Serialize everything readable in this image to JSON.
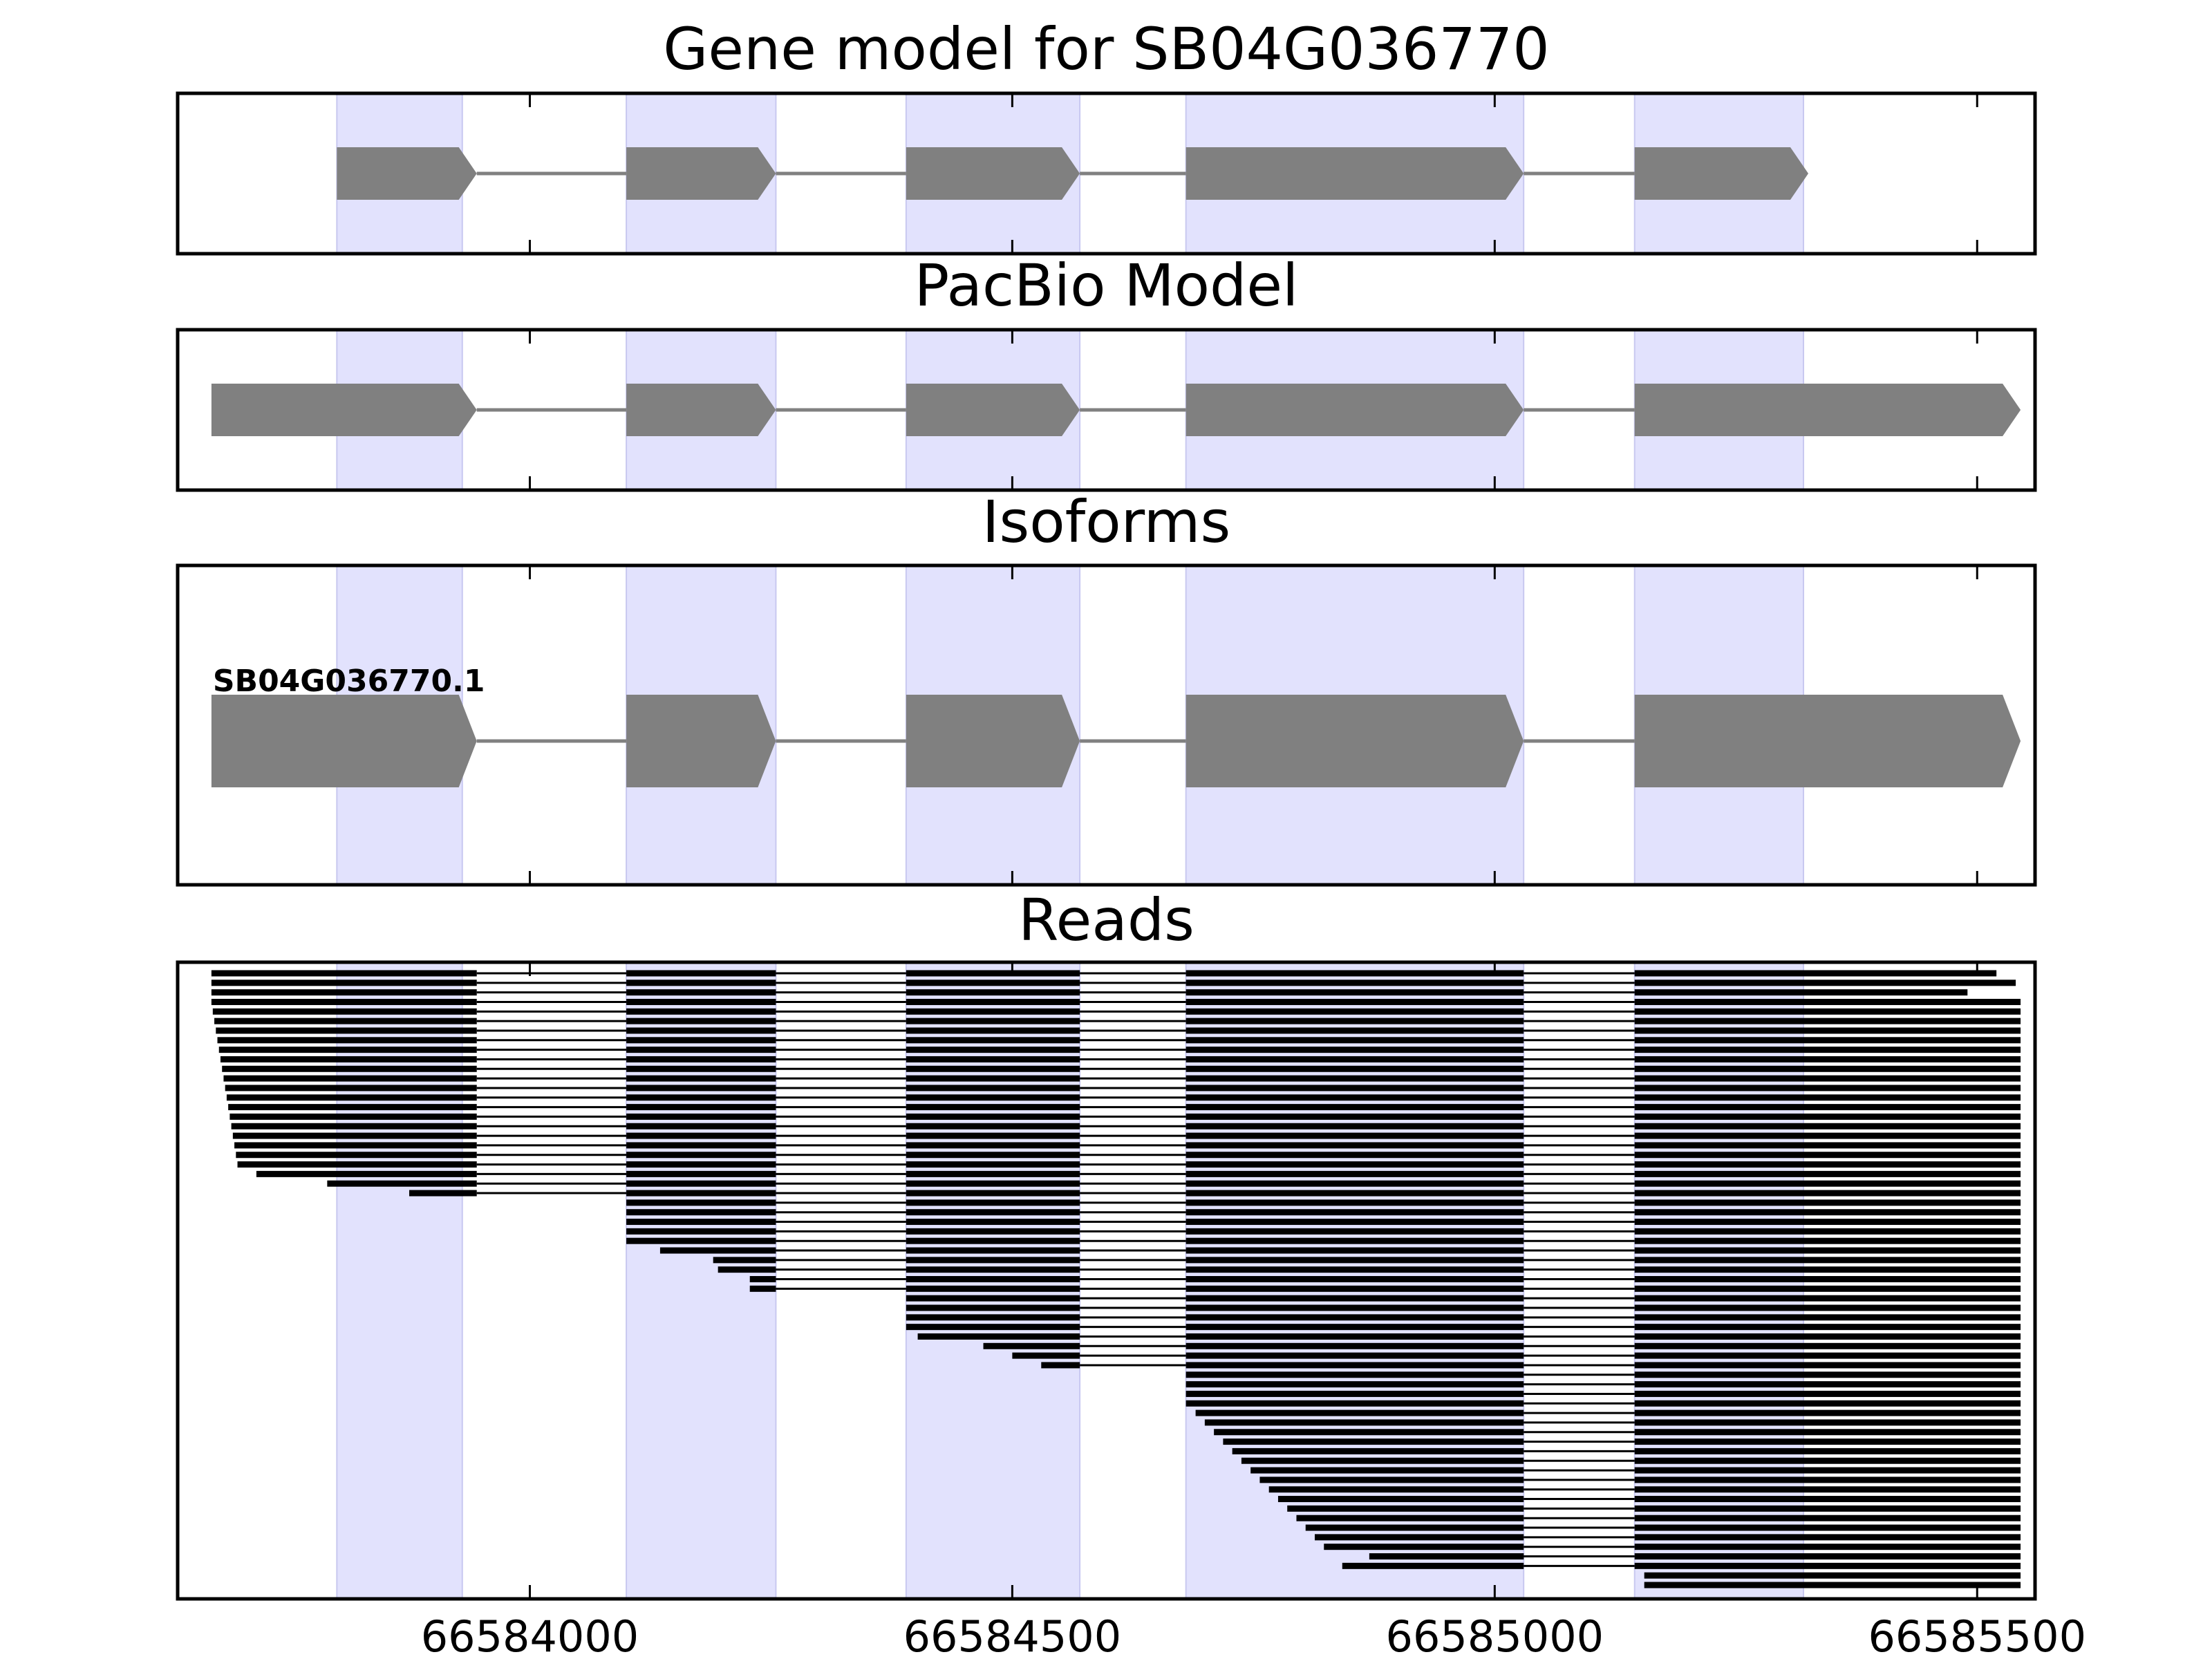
{
  "chart_data": {
    "type": "gene-track",
    "xlim": [
      66583635,
      66585560
    ],
    "xticks": [
      66584000,
      66584500,
      66585000,
      66585500
    ],
    "tick_labels": [
      "66584000",
      "66584500",
      "66585000",
      "66585500"
    ],
    "colors": {
      "exon_shade": "#e2e2fd",
      "exon_shade_edge": "#c8c8f0",
      "feature": "#808080",
      "read": "#000000",
      "frame": "#000000"
    },
    "shaded_exons": [
      [
        66583800,
        66583930
      ],
      [
        66584100,
        66584255
      ],
      [
        66584390,
        66584570
      ],
      [
        66584680,
        66585030
      ],
      [
        66585145,
        66585320
      ]
    ],
    "panels": [
      {
        "title": "Gene model for SB04G036770",
        "exons": [
          [
            66583800,
            66583945
          ],
          [
            66584100,
            66584255
          ],
          [
            66584390,
            66584570
          ],
          [
            66584680,
            66585030
          ],
          [
            66585145,
            66585325
          ]
        ]
      },
      {
        "title": "PacBio Model",
        "exons": [
          [
            66583670,
            66583945
          ],
          [
            66584100,
            66584255
          ],
          [
            66584390,
            66584570
          ],
          [
            66584680,
            66585030
          ],
          [
            66585145,
            66585545
          ]
        ]
      },
      {
        "title": "Isoforms",
        "isoforms": [
          {
            "name": "SB04G036770.1",
            "exons": [
              [
                66583670,
                66583945
              ],
              [
                66584100,
                66584255
              ],
              [
                66584390,
                66584570
              ],
              [
                66584680,
                66585030
              ],
              [
                66585145,
                66585545
              ]
            ]
          }
        ]
      },
      {
        "title": "Reads"
      }
    ]
  }
}
